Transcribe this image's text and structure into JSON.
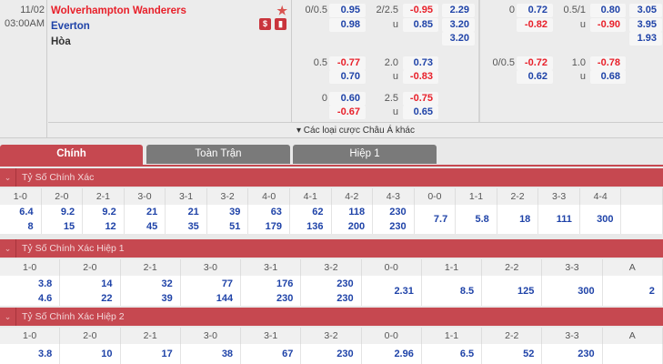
{
  "match": {
    "date": "11/02",
    "time": "03:00AM",
    "home": "Wolverhampton Wanderers",
    "away": "Everton",
    "draw": "Hòa",
    "more": "▾ Các loại cược Châu Á khác"
  },
  "odds_full": {
    "rows": [
      {
        "hcap": "0/0.5",
        "h1": "0.95",
        "h2": "0.98",
        "ou": "2/2.5",
        "o1": "-0.95",
        "u": "u",
        "o2": "0.85",
        "x": [
          "2.29",
          "3.20",
          "3.20"
        ]
      },
      {
        "hcap": "0.5",
        "h1": "-0.77",
        "h2": "0.70",
        "ou": "2.0",
        "o1": "0.73",
        "u": "u",
        "o2": "-0.83"
      },
      {
        "hcap": "0",
        "h1": "0.60",
        "h2": "-0.67",
        "ou": "2.5",
        "o1": "-0.75",
        "u": "u",
        "o2": "0.65"
      }
    ]
  },
  "odds_half": {
    "rows": [
      {
        "hcap": "0",
        "h1": "0.72",
        "h2": "-0.82",
        "ou": "0.5/1",
        "o1": "0.80",
        "u": "u",
        "o2": "-0.90",
        "x": [
          "3.05",
          "3.95",
          "1.93"
        ]
      },
      {
        "hcap": "0/0.5",
        "h1": "-0.72",
        "h2": "0.62",
        "ou": "1.0",
        "o1": "-0.78",
        "u": "u",
        "o2": "0.68"
      }
    ]
  },
  "tabs": [
    "Chính",
    "Toàn Trận",
    "Hiệp 1"
  ],
  "sections": [
    {
      "title": "Tỷ Số Chính Xác",
      "cols": [
        "1-0",
        "2-0",
        "2-1",
        "3-0",
        "3-1",
        "3-2",
        "4-0",
        "4-1",
        "4-2",
        "4-3",
        "0-0",
        "1-1",
        "2-2",
        "3-3",
        "4-4",
        ""
      ],
      "vals": [
        [
          "6.4",
          "8"
        ],
        [
          "9.2",
          "15"
        ],
        [
          "9.2",
          "12"
        ],
        [
          "21",
          "45"
        ],
        [
          "21",
          "35"
        ],
        [
          "39",
          "51"
        ],
        [
          "63",
          "179"
        ],
        [
          "62",
          "136"
        ],
        [
          "118",
          "200"
        ],
        [
          "230",
          "230"
        ],
        [
          "7.7"
        ],
        [
          "5.8"
        ],
        [
          "18"
        ],
        [
          "111"
        ],
        [
          "300"
        ],
        [
          ""
        ]
      ]
    },
    {
      "title": "Tỷ Số Chính Xác Hiệp 1",
      "cols": [
        "1-0",
        "2-0",
        "2-1",
        "3-0",
        "3-1",
        "3-2",
        "0-0",
        "1-1",
        "2-2",
        "3-3",
        "A"
      ],
      "vals": [
        [
          "3.8",
          "4.6"
        ],
        [
          "14",
          "22"
        ],
        [
          "32",
          "39"
        ],
        [
          "77",
          "144"
        ],
        [
          "176",
          "230"
        ],
        [
          "230",
          "230"
        ],
        [
          "2.31"
        ],
        [
          "8.5"
        ],
        [
          "125"
        ],
        [
          "300"
        ],
        [
          "2"
        ]
      ]
    },
    {
      "title": "Tỷ Số Chính Xác Hiệp 2",
      "cols": [
        "1-0",
        "2-0",
        "2-1",
        "3-0",
        "3-1",
        "3-2",
        "0-0",
        "1-1",
        "2-2",
        "3-3",
        "A"
      ],
      "vals": [
        [
          "3.8"
        ],
        [
          "10"
        ],
        [
          "17"
        ],
        [
          "38"
        ],
        [
          "67"
        ],
        [
          "230"
        ],
        [
          "2.96"
        ],
        [
          "6.5"
        ],
        [
          "52"
        ],
        [
          "230"
        ],
        [
          ""
        ]
      ]
    }
  ],
  "colors": {
    "accent": "#c64850",
    "positive": "#1f43a8",
    "negative": "#e8202a",
    "tab_inactive": "#7a7a7a"
  }
}
